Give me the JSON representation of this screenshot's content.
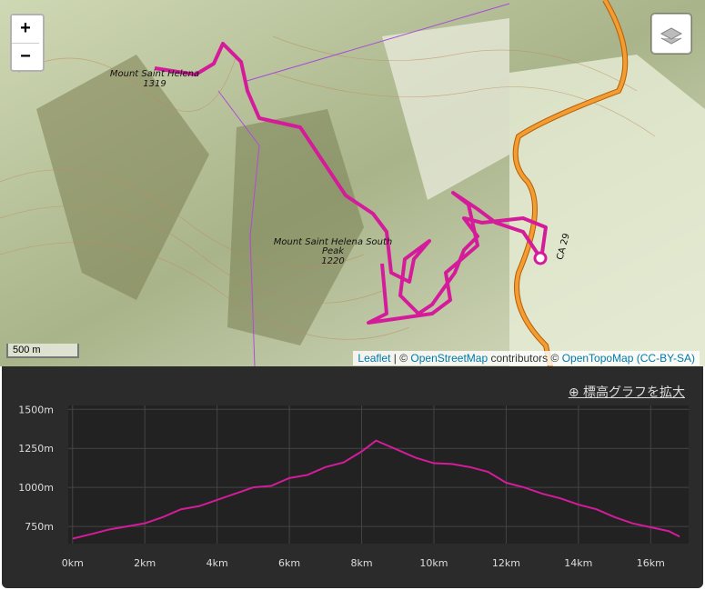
{
  "map": {
    "zoom_in": "+",
    "zoom_out": "−",
    "peak_1_name": "Mount Saint Helena",
    "peak_1_elevation": "1319",
    "peak_2_name_line_1": "Mount Saint Helena South",
    "peak_2_name_line_2": "Peak",
    "peak_2_elevation": "1220",
    "road_label": "CA 29",
    "scale": "500 m",
    "attribution": {
      "leaflet": "Leaflet",
      "sep": "| ©",
      "osm": "OpenStreetMap",
      "mid": "contributors ©",
      "otm": "OpenTopoMap",
      "license": "(CC-BY-SA)"
    }
  },
  "expand_button": "標高グラフを拡大",
  "chart_data": {
    "type": "line",
    "x": [
      0,
      0.5,
      1,
      1.5,
      2,
      2.5,
      3,
      3.5,
      4,
      4.5,
      5,
      5.5,
      6,
      6.5,
      7,
      7.5,
      8,
      8.4,
      8.5,
      9,
      9.5,
      10,
      10.5,
      11,
      11.5,
      12,
      12.5,
      13,
      13.5,
      14,
      14.5,
      15,
      15.5,
      16,
      16.5,
      16.8
    ],
    "series": [
      {
        "name": "elevation",
        "color": "#d41c9a",
        "values": [
          672,
          700,
          730,
          750,
          770,
          810,
          860,
          880,
          920,
          960,
          1000,
          1010,
          1060,
          1080,
          1130,
          1160,
          1230,
          1300,
          1290,
          1240,
          1190,
          1155,
          1150,
          1130,
          1100,
          1030,
          1000,
          960,
          930,
          890,
          860,
          810,
          770,
          745,
          720,
          685
        ]
      }
    ],
    "xlim": [
      -0.12,
      17.05
    ],
    "ylim": [
      640,
      1525
    ],
    "xticks": [
      {
        "value": 0,
        "label": "0km"
      },
      {
        "value": 2,
        "label": "2km"
      },
      {
        "value": 4,
        "label": "4km"
      },
      {
        "value": 6,
        "label": "6km"
      },
      {
        "value": 8,
        "label": "8km"
      },
      {
        "value": 10,
        "label": "10km"
      },
      {
        "value": 12,
        "label": "12km"
      },
      {
        "value": 14,
        "label": "14km"
      },
      {
        "value": 16,
        "label": "16km"
      }
    ],
    "yticks": [
      {
        "value": 750,
        "label": "750m"
      },
      {
        "value": 1000,
        "label": "1000m"
      },
      {
        "value": 1250,
        "label": "1250m"
      },
      {
        "value": 1500,
        "label": "1500m"
      }
    ],
    "grid": true
  }
}
